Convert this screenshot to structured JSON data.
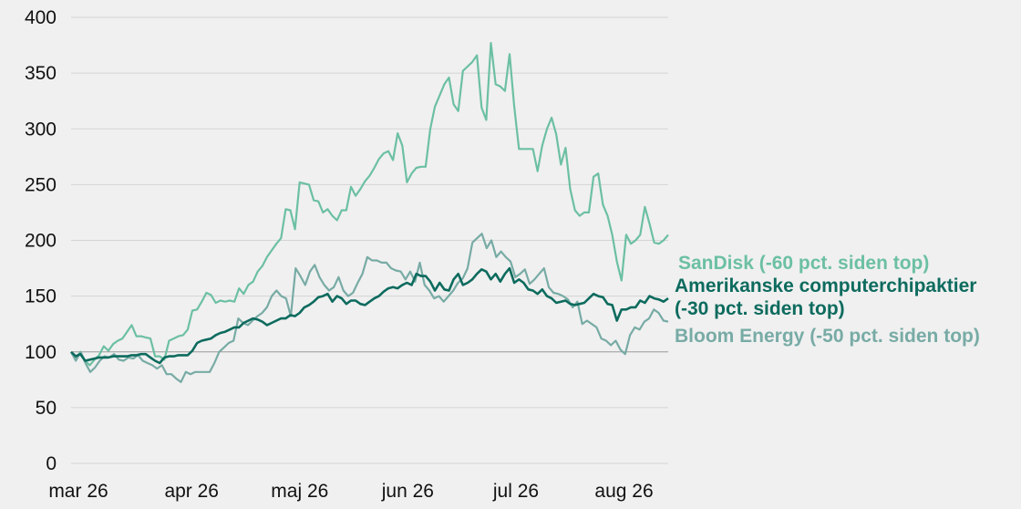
{
  "chart_data": {
    "type": "line",
    "title": "",
    "xlabel": "",
    "ylabel": "",
    "ylim": [
      0,
      400
    ],
    "yticks": [
      0,
      50,
      100,
      150,
      200,
      250,
      300,
      350,
      400
    ],
    "xlim": [
      0,
      116
    ],
    "xticks": [
      {
        "label": "mar 26",
        "x": 0
      },
      {
        "label": "apr 26",
        "x": 22
      },
      {
        "label": "maj 26",
        "x": 43
      },
      {
        "label": "jun 26",
        "x": 64
      },
      {
        "label": "jul 26",
        "x": 85
      },
      {
        "label": "aug 26",
        "x": 106
      }
    ],
    "reference_line": 100,
    "grid": "horizontal",
    "series": [
      {
        "name": "SanDisk (-60 pct. siden top)",
        "color": "#6cc0a2",
        "values": [
          100,
          94,
          100,
          92,
          88,
          93,
          97,
          105,
          101,
          107,
          110,
          112,
          118,
          124,
          114,
          114,
          113,
          112,
          96,
          96,
          93,
          110,
          112,
          114,
          115,
          120,
          137,
          138,
          145,
          153,
          151,
          144,
          146,
          145,
          146,
          145,
          157,
          152,
          160,
          163,
          172,
          177,
          185,
          191,
          197,
          202,
          228,
          227,
          210,
          252,
          251,
          250,
          236,
          235,
          225,
          228,
          222,
          218,
          227,
          227,
          248,
          240,
          246,
          253,
          258,
          265,
          273,
          278,
          280,
          272,
          296,
          285,
          252,
          260,
          265,
          266,
          266,
          300,
          320,
          330,
          340,
          346,
          322,
          316,
          352,
          356,
          360,
          366,
          319,
          308,
          377,
          340,
          338,
          334,
          367,
          320,
          282,
          282,
          282,
          282,
          262,
          285,
          300,
          310,
          295,
          268,
          283,
          246,
          227,
          222,
          225,
          225,
          257,
          260,
          232,
          222,
          205,
          181,
          164,
          205,
          197,
          200,
          205,
          230,
          215,
          198,
          197,
          200,
          205
        ]
      },
      {
        "name": "Bloom Energy (-50 pct. siden top)",
        "color": "#78aba5",
        "values": [
          100,
          92,
          100,
          90,
          82,
          86,
          92,
          96,
          95,
          98,
          93,
          92,
          95,
          94,
          97,
          92,
          90,
          88,
          85,
          88,
          80,
          80,
          76,
          73,
          82,
          80,
          82,
          82,
          82,
          82,
          90,
          100,
          104,
          108,
          110,
          130,
          126,
          124,
          128,
          132,
          135,
          140,
          150,
          155,
          150,
          148,
          132,
          175,
          168,
          160,
          172,
          178,
          167,
          160,
          155,
          158,
          167,
          155,
          150,
          153,
          162,
          170,
          185,
          182,
          182,
          180,
          180,
          175,
          173,
          172,
          165,
          172,
          163,
          180,
          160,
          155,
          148,
          150,
          145,
          150,
          155,
          162,
          166,
          175,
          198,
          202,
          206,
          193,
          200,
          185,
          190,
          185,
          181,
          167,
          170,
          174,
          161,
          165,
          170,
          175,
          158,
          153,
          152,
          150,
          147,
          140,
          145,
          125,
          128,
          125,
          122,
          112,
          110,
          106,
          110,
          102,
          98,
          115,
          122,
          120,
          127,
          130,
          138,
          135,
          128,
          127
        ]
      },
      {
        "name": "Amerikanske computerchipaktier (-30 pct. siden top)",
        "color": "#0d6b5e",
        "values": [
          100,
          96,
          98,
          92,
          93,
          94,
          95,
          95,
          95,
          96,
          96,
          96,
          96,
          97,
          97,
          98,
          98,
          95,
          92,
          90,
          95,
          96,
          96,
          97,
          97,
          97,
          101,
          108,
          110,
          111,
          112,
          115,
          117,
          118,
          120,
          122,
          122,
          126,
          128,
          130,
          129,
          127,
          124,
          126,
          128,
          130,
          130,
          133,
          132,
          135,
          140,
          142,
          145,
          149,
          150,
          152,
          145,
          150,
          148,
          143,
          146,
          146,
          143,
          142,
          145,
          148,
          150,
          154,
          157,
          158,
          157,
          160,
          162,
          160,
          170,
          168,
          168,
          163,
          155,
          162,
          156,
          155,
          165,
          170,
          160,
          162,
          165,
          170,
          174,
          172,
          165,
          170,
          163,
          170,
          175,
          162,
          165,
          162,
          156,
          155,
          152,
          156,
          150,
          148,
          144,
          145,
          146,
          143,
          142,
          143,
          144,
          148,
          152,
          150,
          149,
          143,
          142,
          128,
          138,
          138,
          140,
          140,
          146,
          144,
          150,
          148,
          147,
          145,
          148
        ]
      }
    ],
    "legend": [
      {
        "lines": [
          "SanDisk (-60 pct. siden top)"
        ],
        "color": "#6cc0a2"
      },
      {
        "lines": [
          "Amerikanske computerchipaktier",
          "(-30 pct. siden top)"
        ],
        "color": "#0d6b5e"
      },
      {
        "lines": [
          "Bloom Energy (-50 pct. siden top)"
        ],
        "color": "#78aba5"
      }
    ]
  }
}
